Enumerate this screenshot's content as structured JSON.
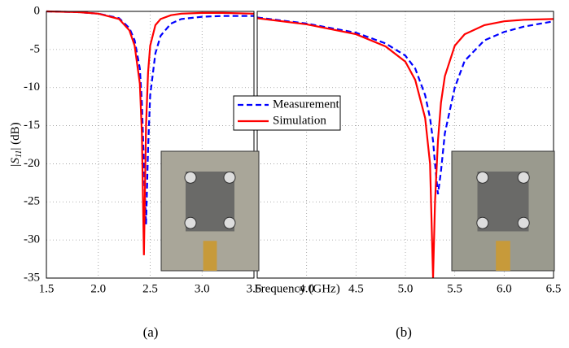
{
  "chart_data": [
    {
      "type": "line",
      "xlabel": "Frequency (GHz)",
      "ylabel": [
        "|S",
        "11",
        "| (dB)"
      ],
      "panel_label": "(a)",
      "x": [
        1.5,
        1.8,
        2.0,
        2.2,
        2.3,
        2.35,
        2.4,
        2.42,
        2.44,
        2.46,
        2.48,
        2.5,
        2.55,
        2.6,
        2.7,
        2.8,
        3.0,
        3.2,
        3.5
      ],
      "series": [
        {
          "name": "Measurement",
          "color": "#0000ff",
          "dash": true,
          "values": [
            0,
            -0.1,
            -0.3,
            -0.9,
            -2.2,
            -3.8,
            -7.5,
            -12,
            -20,
            -28,
            -18,
            -11,
            -5.5,
            -3.2,
            -1.6,
            -1.0,
            -0.7,
            -0.6,
            -0.6
          ]
        },
        {
          "name": "Simulation",
          "color": "#ff0000",
          "dash": false,
          "values": [
            0,
            -0.1,
            -0.3,
            -1.0,
            -2.5,
            -4.5,
            -9.5,
            -16,
            -32,
            -15,
            -8,
            -4.5,
            -1.8,
            -1.0,
            -0.5,
            -0.3,
            -0.2,
            -0.2,
            -0.3
          ]
        }
      ],
      "xlim": [
        1.5,
        3.5
      ],
      "xticks": [
        1.5,
        {
          "value": 2,
          "label": "2.0"
        },
        2.5,
        {
          "value": 3,
          "label": "3.0"
        },
        3.5
      ],
      "ylim": [
        -35,
        0
      ],
      "yticks": [
        0,
        -5,
        -10,
        -15,
        -20,
        -25,
        -30,
        -35
      ],
      "grid": true
    },
    {
      "type": "line",
      "panel_label": "(b)",
      "x": [
        3.5,
        4.0,
        4.5,
        4.8,
        5.0,
        5.1,
        5.2,
        5.25,
        5.28,
        5.3,
        5.33,
        5.36,
        5.4,
        5.5,
        5.6,
        5.8,
        6.0,
        6.2,
        6.5
      ],
      "series": [
        {
          "color": "#0000ff",
          "dash": true,
          "values": [
            -0.8,
            -1.6,
            -2.8,
            -4.2,
            -5.8,
            -7.5,
            -11,
            -14,
            -17,
            -20,
            -24,
            -21,
            -16,
            -10,
            -6.5,
            -3.8,
            -2.7,
            -2,
            -1.3
          ]
        },
        {
          "color": "#ff0000",
          "dash": false,
          "values": [
            -0.9,
            -1.7,
            -3.0,
            -4.6,
            -6.6,
            -9,
            -14,
            -20,
            -35,
            -25,
            -17,
            -12,
            -8.5,
            -4.5,
            -3,
            -1.8,
            -1.3,
            -1.1,
            -1
          ]
        }
      ],
      "xlim": [
        3.5,
        6.5
      ],
      "xticks": [
        {
          "value": 4,
          "label": "4.0"
        },
        4.5,
        {
          "value": 5,
          "label": "5.0"
        },
        5.5,
        {
          "value": 6,
          "label": "6.0"
        },
        6.5
      ],
      "ylim": [
        -35,
        0
      ],
      "yticks": [
        0,
        -5,
        -10,
        -15,
        -20,
        -25,
        -30,
        -35
      ],
      "grid": true
    }
  ]
}
